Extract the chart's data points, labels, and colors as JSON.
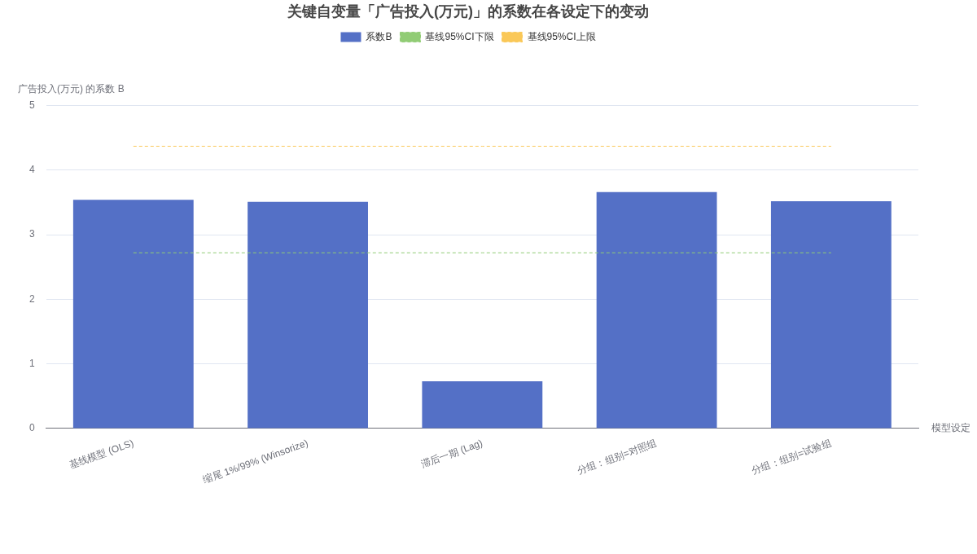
{
  "chart_data": {
    "type": "bar",
    "title": "关键自变量「广告投入(万元)」的系数在各设定下的变动",
    "xlabel": "模型设定",
    "ylabel": "广告投入(万元) 的系数 B",
    "categories": [
      "基线模型 (OLS)",
      "缩尾 1%/99% (Winsorize)",
      "滞后一期 (Lag)",
      "分组：组别=对照组",
      "分组：组别=试验组"
    ],
    "series": [
      {
        "name": "系数B",
        "color": "#5470c6",
        "values": [
          3.54,
          3.51,
          0.73,
          3.66,
          3.52
        ]
      },
      {
        "name": "基线95%CI下限",
        "type": "line",
        "color": "#91cc75",
        "values": [
          2.72,
          2.72,
          2.72,
          2.72,
          2.72
        ]
      },
      {
        "name": "基线95%CI上限",
        "type": "line",
        "color": "#fac858",
        "values": [
          4.37,
          4.37,
          4.37,
          4.37,
          4.37
        ]
      }
    ],
    "ylim": [
      0,
      5
    ],
    "yticks": [
      0,
      1,
      2,
      3,
      4,
      5
    ],
    "grid": "y",
    "legend": "top",
    "marker": "none",
    "line_style": "dashed"
  }
}
